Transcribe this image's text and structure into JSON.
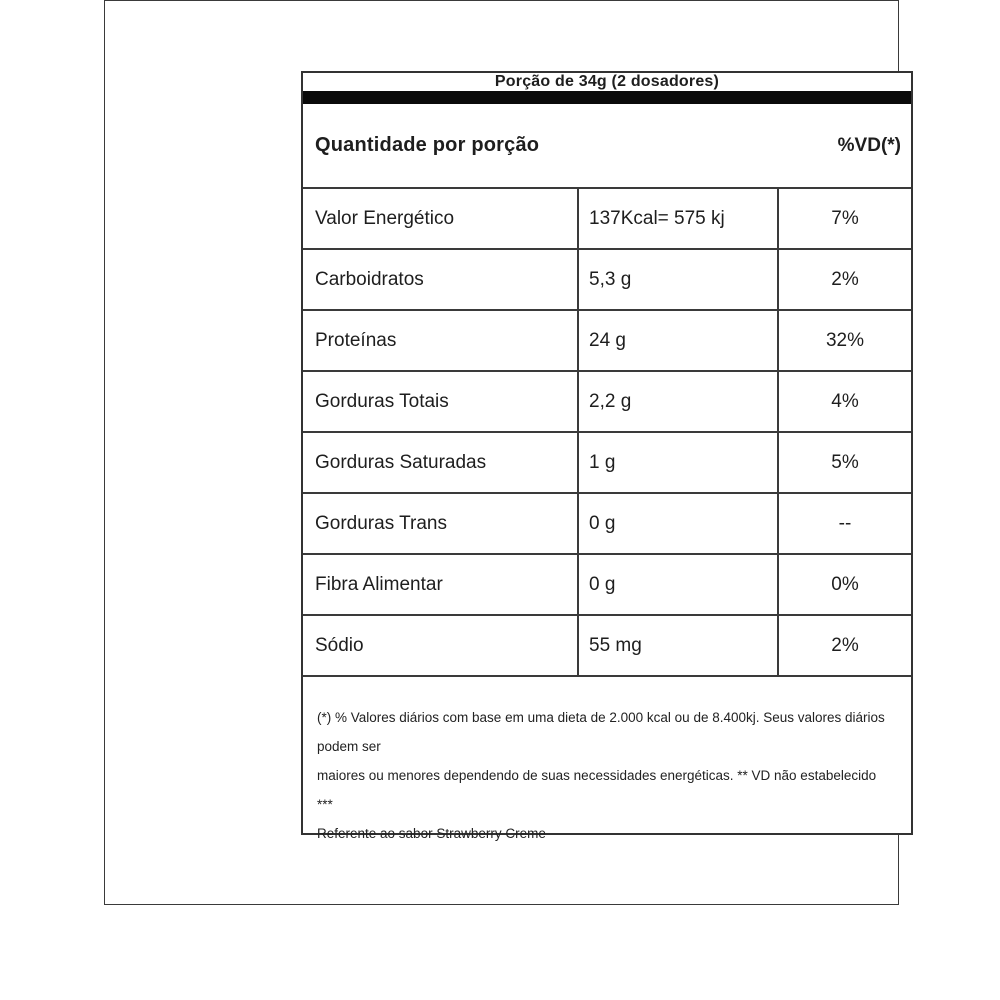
{
  "table": {
    "serving_header": "Porção de 34g (2 dosadores)",
    "amount_header": "Quantidade por porção",
    "dv_header": "%VD(*)",
    "rows": [
      {
        "label": "Valor Energético",
        "value": "137Kcal= 575 kj",
        "dv": "7%"
      },
      {
        "label": "Carboidratos",
        "value": "5,3 g",
        "dv": "2%"
      },
      {
        "label": "Proteínas",
        "value": "24 g",
        "dv": "32%"
      },
      {
        "label": "Gorduras Totais",
        "value": "2,2 g",
        "dv": "4%"
      },
      {
        "label": "Gorduras Saturadas",
        "value": "1 g",
        "dv": "5%"
      },
      {
        "label": "Gorduras Trans",
        "value": "0 g",
        "dv": "--"
      },
      {
        "label": "Fibra Alimentar",
        "value": "0 g",
        "dv": "0%"
      },
      {
        "label": "Sódio",
        "value": "55 mg",
        "dv": "2%"
      }
    ],
    "footnote_line1": "(*) % Valores diários com base em uma dieta de 2.000 kcal ou de 8.400kj. Seus valores diários podem ser",
    "footnote_line2": "maiores ou menores dependendo de suas necessidades energéticas. ** VD não estabelecido ***",
    "footnote_line3": "Referente ao sabor Strawberry Creme"
  },
  "colors": {
    "background": "#ffffff",
    "text": "#1e1e1e",
    "border": "#3a3a3a",
    "separator_bar": "#0a0a0a"
  }
}
